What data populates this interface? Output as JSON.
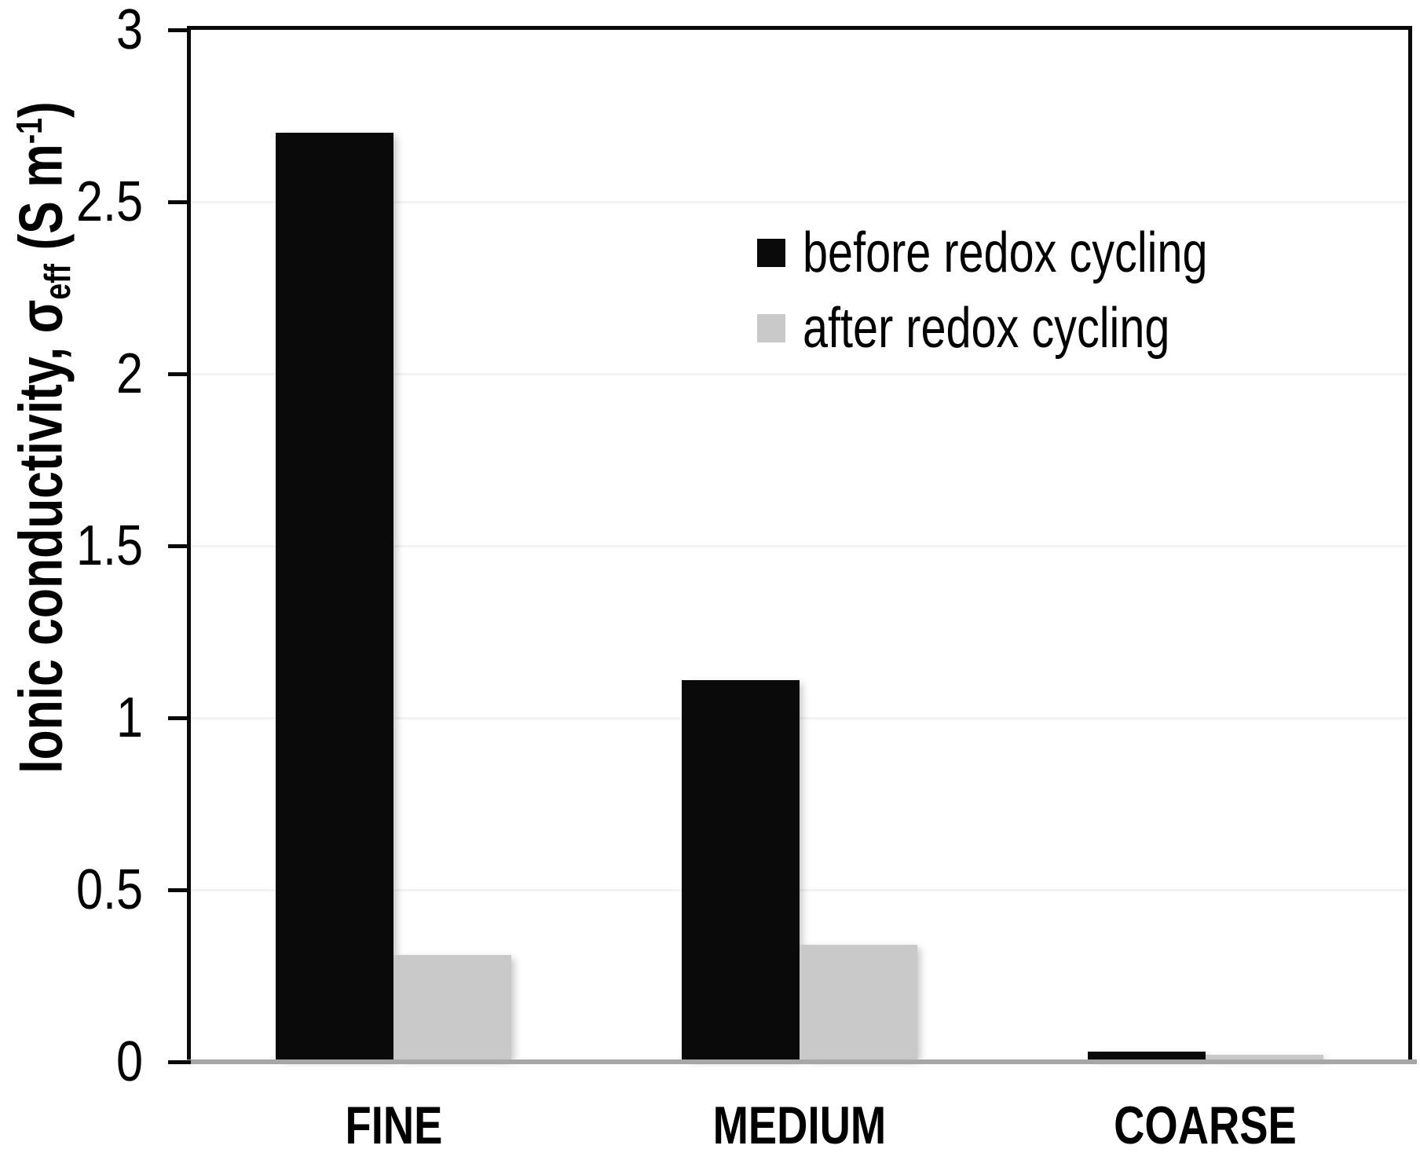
{
  "chart_data": {
    "type": "bar",
    "title": "",
    "categories": [
      "FINE",
      "MEDIUM",
      "COARSE"
    ],
    "series": [
      {
        "name": "before redox cycling",
        "color": "#0a0a0a",
        "values": [
          2.7,
          1.11,
          0.03
        ]
      },
      {
        "name": "after redox cycling",
        "color": "#c9c9c9",
        "values": [
          0.31,
          0.34,
          0.02
        ]
      }
    ],
    "ylabel_plain": "Ionic conductivity, σeff (S m-1)",
    "ylabel_parts": {
      "prefix": "Ionic conductivity, ",
      "sigma": "σ",
      "sigma_sub": "eff",
      "unit_open": " (S m",
      "unit_sup": "-1",
      "unit_close": ")"
    },
    "xlabel": "",
    "ylim": [
      0,
      3
    ],
    "yticks": [
      0,
      0.5,
      1,
      1.5,
      2,
      2.5,
      3
    ],
    "ytick_labels": [
      "0",
      "0.5",
      "1",
      "1.5",
      "2",
      "2.5",
      "3"
    ],
    "grid": "horizontal-light",
    "legend_position": "inside-top-right",
    "colors": {
      "axis_box": "#0a0a0a",
      "baseline": "#a6a6a6",
      "gridline": "#f2f3f5",
      "text": "#000000",
      "background": "#ffffff"
    }
  }
}
